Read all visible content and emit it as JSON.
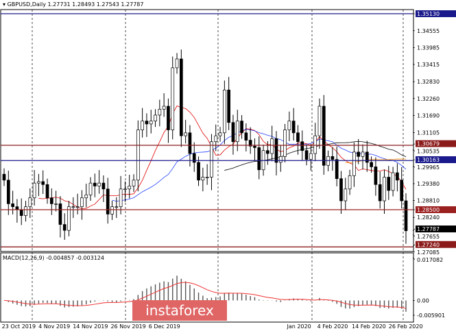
{
  "header": {
    "symbol": "GBPUSD",
    "timeframe": "Daily",
    "ohlc": "1.27731 1.28493 1.27543 1.27787"
  },
  "watermark": "instaforex",
  "chart_data": {
    "type": "candlestick",
    "symbol": "GBPUSD",
    "price_ticks": [
      "1.34555",
      "1.33985",
      "1.33415",
      "1.32830",
      "1.32260",
      "1.31690",
      "1.31105",
      "1.30535",
      "1.29965",
      "1.29380",
      "1.28810",
      "1.28240",
      "1.27655",
      "1.27085"
    ],
    "ylim": [
      1.27085,
      1.3513
    ],
    "levels": [
      {
        "price": "1.35130",
        "color": "#1a1a8c"
      },
      {
        "price": "1.30679",
        "color": "#8b1a1a"
      },
      {
        "price": "1.30163",
        "color": "#1a1a8c"
      },
      {
        "price": "1.28500",
        "color": "#9b2020"
      },
      {
        "price": "1.27240",
        "color": "#8b1a1a"
      }
    ],
    "current_price": "1.27787",
    "date_labels": [
      {
        "i": 2,
        "t": "23 Oct 2019"
      },
      {
        "i": 10,
        "t": "4 Nov 2019"
      },
      {
        "i": 18,
        "t": "14 Nov 2019"
      },
      {
        "i": 26,
        "t": "26 Nov 2019"
      },
      {
        "i": 34,
        "t": "6 Dec 2019"
      },
      {
        "i": 68,
        "t": "Jan 2020"
      },
      {
        "i": 75,
        "t": "4 Feb 2020"
      },
      {
        "i": 83,
        "t": "14 Feb 2020"
      },
      {
        "i": 91,
        "t": "26 Feb 2020"
      }
    ],
    "closes": [
      1.295,
      1.287,
      1.286,
      1.285,
      1.283,
      1.286,
      1.289,
      1.294,
      1.2945,
      1.2935,
      1.289,
      1.287,
      1.287,
      1.28,
      1.278,
      1.286,
      1.286,
      1.286,
      1.289,
      1.29,
      1.294,
      1.293,
      1.294,
      1.292,
      1.2835,
      1.286,
      1.286,
      1.292,
      1.292,
      1.293,
      1.295,
      1.312,
      1.315,
      1.314,
      1.315,
      1.317,
      1.319,
      1.32,
      1.312,
      1.333,
      1.336,
      1.31,
      1.311,
      1.304,
      1.301,
      1.295,
      1.296,
      1.296,
      1.308,
      1.31,
      1.311,
      1.3255,
      1.3145,
      1.308,
      1.315,
      1.311,
      1.3085,
      1.3065,
      1.306,
      1.2985,
      1.305,
      1.304,
      1.309,
      1.301,
      1.303,
      1.312,
      1.315,
      1.311,
      1.308,
      1.305,
      1.302,
      1.304,
      1.31,
      1.32,
      1.3,
      1.303,
      1.302,
      1.2955,
      1.288,
      1.292,
      1.2965,
      1.3045,
      1.303,
      1.3045,
      1.301,
      1.2995,
      1.2935,
      1.288,
      1.296,
      1.2915,
      1.2975,
      1.295,
      1.288,
      1.27787
    ],
    "macd": {
      "label": "MACD(12,26,9) -0.004857 -0.003124",
      "ticks": [
        "0.017082",
        "0.00",
        "-0.005901"
      ],
      "ylim": [
        -0.005901,
        0.017082
      ]
    }
  }
}
